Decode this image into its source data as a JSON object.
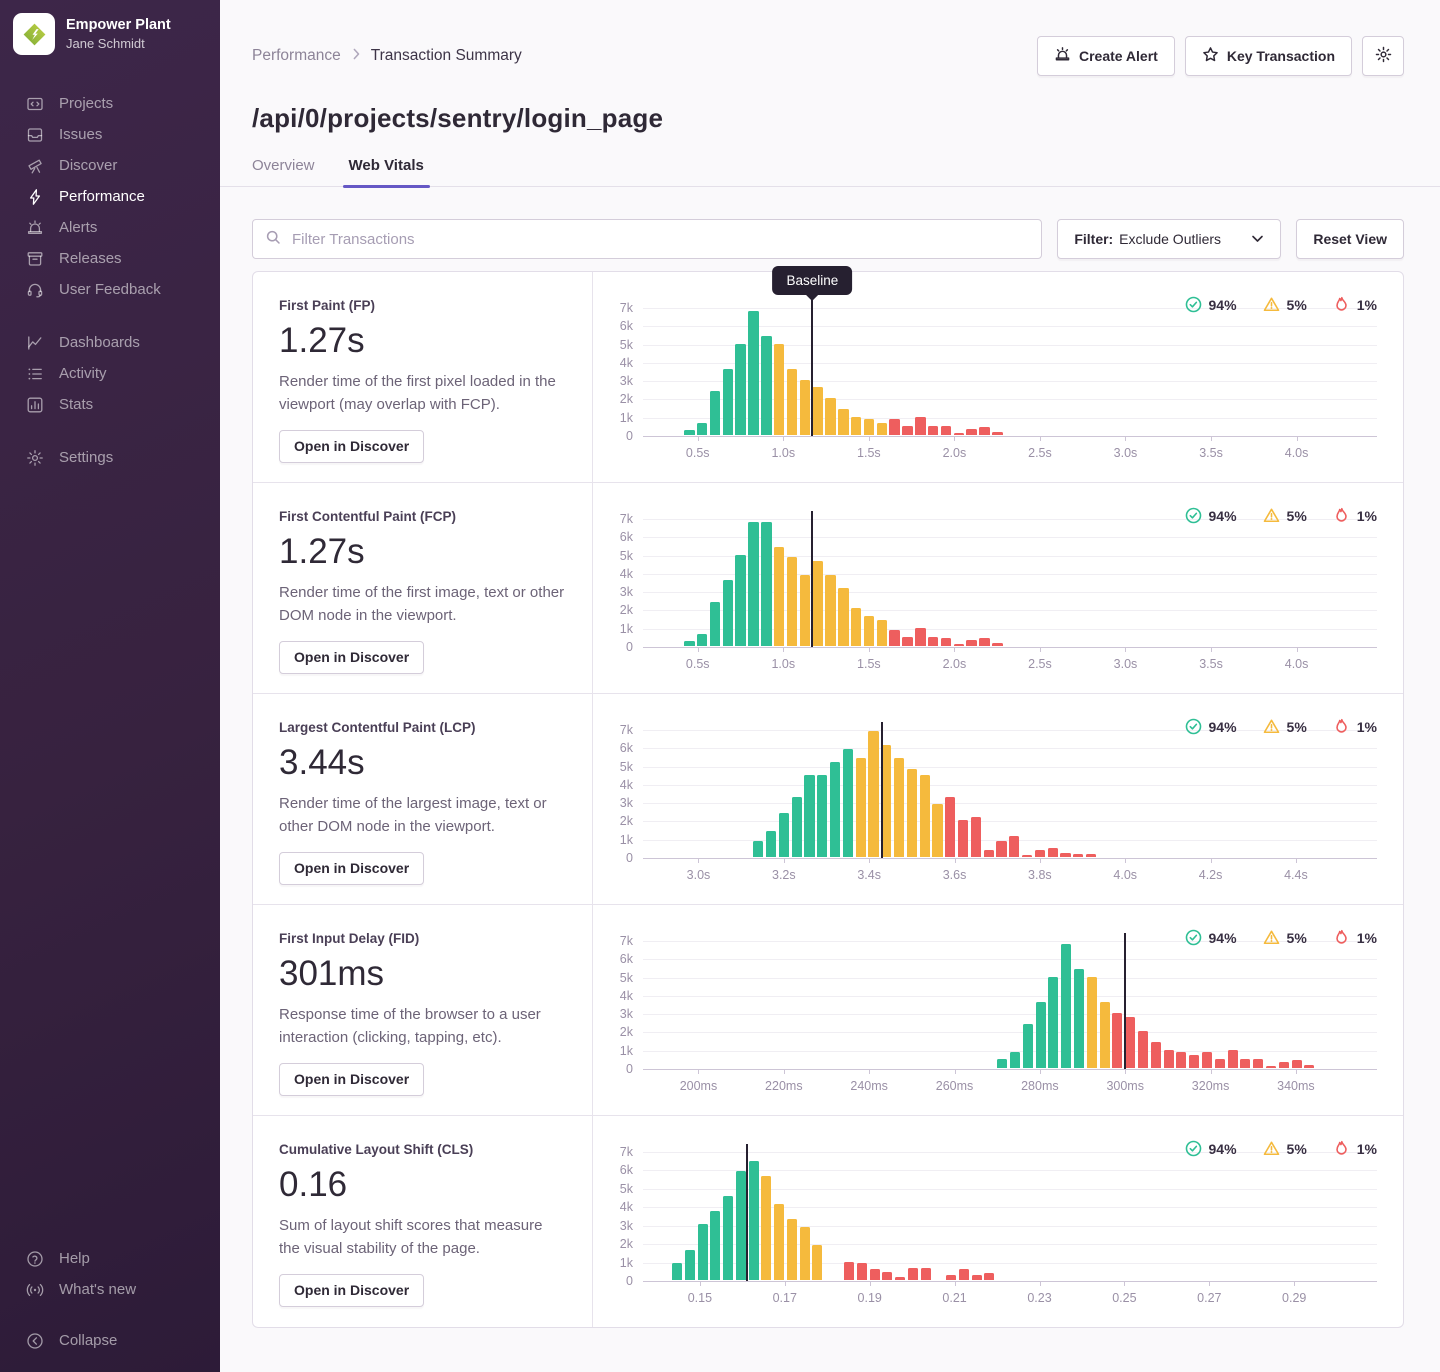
{
  "sidebar": {
    "org_name": "Empower Plant",
    "user_name": "Jane Schmidt",
    "nav_primary": [
      {
        "label": "Projects"
      },
      {
        "label": "Issues"
      },
      {
        "label": "Discover"
      },
      {
        "label": "Performance"
      },
      {
        "label": "Alerts"
      },
      {
        "label": "Releases"
      },
      {
        "label": "User Feedback"
      }
    ],
    "nav_secondary": [
      {
        "label": "Dashboards"
      },
      {
        "label": "Activity"
      },
      {
        "label": "Stats"
      }
    ],
    "nav_settings": [
      {
        "label": "Settings"
      }
    ],
    "nav_footer": [
      {
        "label": "Help"
      },
      {
        "label": "What's new"
      },
      {
        "label": "Collapse"
      }
    ]
  },
  "header": {
    "breadcrumb_1": "Performance",
    "breadcrumb_2": "Transaction Summary",
    "create_alert_label": "Create Alert",
    "key_transaction_label": "Key Transaction",
    "page_title": "/api/0/projects/sentry/login_page",
    "tab_overview": "Overview",
    "tab_web_vitals": "Web Vitals"
  },
  "toolbar": {
    "search_placeholder": "Filter Transactions",
    "filter_label": "Filter:",
    "filter_value": "Exclude Outliers",
    "reset_label": "Reset View"
  },
  "colors": {
    "good": "#2fbf95",
    "meh": "#f5ba3d",
    "poor": "#ee5e5e",
    "accent": "#6658c5",
    "baseline": "#262030"
  },
  "chart_data": [
    {
      "type": "bar",
      "key": "fp",
      "title": "First Paint (FP)",
      "value": "1.27s",
      "description": "Render time of the first pixel loaded in the viewport (may overlap with FCP).",
      "button_label": "Open in Discover",
      "legend": {
        "good": "94%",
        "meh": "5%",
        "poor": "1%"
      },
      "ylabel_ticks": [
        "7k",
        "6k",
        "5k",
        "4k",
        "3k",
        "2k",
        "1k",
        "0"
      ],
      "ymax": 7000,
      "xlim": [
        0.18,
        4.47
      ],
      "xticks": [
        [
          0.5,
          "0.5s"
        ],
        [
          1.0,
          "1.0s"
        ],
        [
          1.5,
          "1.5s"
        ],
        [
          2.0,
          "2.0s"
        ],
        [
          2.5,
          "2.5s"
        ],
        [
          3.0,
          "3.0s"
        ],
        [
          3.5,
          "3.5s"
        ],
        [
          4.0,
          "4.0s"
        ]
      ],
      "baseline": 1.17,
      "baseline_tooltip": "Baseline",
      "bar_width": 0.062,
      "series": [
        {
          "name": "good",
          "bars": [
            [
              0.42,
              300
            ],
            [
              0.495,
              650
            ],
            [
              0.57,
              2400
            ],
            [
              0.645,
              3600
            ],
            [
              0.72,
              5000
            ],
            [
              0.795,
              6800
            ],
            [
              0.87,
              5400
            ]
          ]
        },
        {
          "name": "meh",
          "bars": [
            [
              0.945,
              5000
            ],
            [
              1.02,
              3600
            ],
            [
              1.095,
              3000
            ],
            [
              1.17,
              2650
            ],
            [
              1.245,
              2000
            ],
            [
              1.32,
              1400
            ],
            [
              1.395,
              1000
            ],
            [
              1.47,
              900
            ],
            [
              1.545,
              650
            ]
          ]
        },
        {
          "name": "poor",
          "bars": [
            [
              1.62,
              900
            ],
            [
              1.695,
              500
            ],
            [
              1.77,
              1000
            ],
            [
              1.845,
              500
            ],
            [
              1.92,
              500
            ],
            [
              1.995,
              100
            ],
            [
              2.07,
              350
            ],
            [
              2.145,
              450
            ],
            [
              2.22,
              150
            ]
          ]
        }
      ]
    },
    {
      "type": "bar",
      "key": "fcp",
      "title": "First Contentful Paint (FCP)",
      "value": "1.27s",
      "description": "Render time of the first image, text or other DOM node in the viewport.",
      "button_label": "Open in Discover",
      "legend": {
        "good": "94%",
        "meh": "5%",
        "poor": "1%"
      },
      "ylabel_ticks": [
        "7k",
        "6k",
        "5k",
        "4k",
        "3k",
        "2k",
        "1k",
        "0"
      ],
      "ymax": 7000,
      "xlim": [
        0.18,
        4.47
      ],
      "xticks": [
        [
          0.5,
          "0.5s"
        ],
        [
          1.0,
          "1.0s"
        ],
        [
          1.5,
          "1.5s"
        ],
        [
          2.0,
          "2.0s"
        ],
        [
          2.5,
          "2.5s"
        ],
        [
          3.0,
          "3.0s"
        ],
        [
          3.5,
          "3.5s"
        ],
        [
          4.0,
          "4.0s"
        ]
      ],
      "baseline": 1.17,
      "baseline_tooltip": null,
      "bar_width": 0.062,
      "series": [
        {
          "name": "good",
          "bars": [
            [
              0.42,
              300
            ],
            [
              0.495,
              650
            ],
            [
              0.57,
              2400
            ],
            [
              0.645,
              3600
            ],
            [
              0.72,
              5000
            ],
            [
              0.795,
              6800
            ],
            [
              0.87,
              6800
            ]
          ]
        },
        {
          "name": "meh",
          "bars": [
            [
              0.945,
              5400
            ],
            [
              1.02,
              4850
            ],
            [
              1.095,
              3900
            ],
            [
              1.17,
              4650
            ],
            [
              1.245,
              3900
            ],
            [
              1.32,
              3150
            ],
            [
              1.395,
              2100
            ],
            [
              1.47,
              1650
            ],
            [
              1.545,
              1400
            ]
          ]
        },
        {
          "name": "poor",
          "bars": [
            [
              1.62,
              900
            ],
            [
              1.695,
              500
            ],
            [
              1.77,
              1000
            ],
            [
              1.845,
              500
            ],
            [
              1.92,
              450
            ],
            [
              1.995,
              100
            ],
            [
              2.07,
              350
            ],
            [
              2.145,
              450
            ],
            [
              2.22,
              150
            ]
          ]
        }
      ]
    },
    {
      "type": "bar",
      "key": "lcp",
      "title": "Largest Contentful Paint (LCP)",
      "value": "3.44s",
      "description": "Render time of the largest image, text or other DOM node in the viewport.",
      "button_label": "Open in Discover",
      "legend": {
        "good": "94%",
        "meh": "5%",
        "poor": "1%"
      },
      "ylabel_ticks": [
        "7k",
        "6k",
        "5k",
        "4k",
        "3k",
        "2k",
        "1k",
        "0"
      ],
      "ymax": 7000,
      "xlim": [
        2.87,
        4.59
      ],
      "xticks": [
        [
          3.0,
          "3.0s"
        ],
        [
          3.2,
          "3.2s"
        ],
        [
          3.4,
          "3.4s"
        ],
        [
          3.6,
          "3.6s"
        ],
        [
          3.8,
          "3.8s"
        ],
        [
          4.0,
          "4.0s"
        ],
        [
          4.2,
          "4.2s"
        ],
        [
          4.4,
          "4.4s"
        ]
      ],
      "baseline": 3.43,
      "baseline_tooltip": null,
      "bar_width": 0.024,
      "series": [
        {
          "name": "good",
          "bars": [
            [
              3.128,
              900
            ],
            [
              3.158,
              1400
            ],
            [
              3.188,
              2400
            ],
            [
              3.218,
              3300
            ],
            [
              3.248,
              4500
            ],
            [
              3.278,
              4500
            ],
            [
              3.308,
              5200
            ],
            [
              3.338,
              5900
            ]
          ]
        },
        {
          "name": "meh",
          "bars": [
            [
              3.368,
              5400
            ],
            [
              3.398,
              6900
            ],
            [
              3.428,
              6100
            ],
            [
              3.458,
              5400
            ],
            [
              3.488,
              4800
            ],
            [
              3.518,
              4500
            ],
            [
              3.548,
              2900
            ]
          ]
        },
        {
          "name": "poor",
          "bars": [
            [
              3.578,
              3300
            ],
            [
              3.608,
              2000
            ],
            [
              3.638,
              2200
            ],
            [
              3.668,
              400
            ],
            [
              3.698,
              850
            ],
            [
              3.728,
              1150
            ],
            [
              3.758,
              100
            ],
            [
              3.788,
              400
            ],
            [
              3.818,
              500
            ],
            [
              3.848,
              200
            ],
            [
              3.878,
              150
            ],
            [
              3.908,
              150
            ]
          ]
        }
      ]
    },
    {
      "type": "bar",
      "key": "fid",
      "title": "First Input Delay (FID)",
      "value": "301ms",
      "description": "Response time of the browser to a user interaction (clicking, tapping, etc).",
      "button_label": "Open in Discover",
      "legend": {
        "good": "94%",
        "meh": "5%",
        "poor": "1%"
      },
      "ylabel_ticks": [
        "7k",
        "6k",
        "5k",
        "4k",
        "3k",
        "2k",
        "1k",
        "0"
      ],
      "ymax": 7000,
      "xlim": [
        187,
        359
      ],
      "xticks": [
        [
          200,
          "200ms"
        ],
        [
          220,
          "220ms"
        ],
        [
          240,
          "240ms"
        ],
        [
          260,
          "260ms"
        ],
        [
          280,
          "280ms"
        ],
        [
          300,
          "300ms"
        ],
        [
          320,
          "320ms"
        ],
        [
          340,
          "340ms"
        ]
      ],
      "baseline": 300,
      "baseline_tooltip": null,
      "bar_width": 2.35,
      "series": [
        {
          "name": "good",
          "bars": [
            [
              270,
              500
            ],
            [
              273,
              900
            ],
            [
              276,
              2400
            ],
            [
              279,
              3600
            ],
            [
              282,
              5000
            ],
            [
              285,
              6800
            ],
            [
              288,
              5400
            ]
          ]
        },
        {
          "name": "meh",
          "bars": [
            [
              291,
              5000
            ],
            [
              294,
              3600
            ]
          ]
        },
        {
          "name": "poor",
          "bars": [
            [
              297,
              3000
            ],
            [
              300,
              2800
            ],
            [
              303,
              2000
            ],
            [
              306,
              1400
            ],
            [
              309,
              1000
            ],
            [
              312,
              900
            ],
            [
              315,
              700
            ],
            [
              318,
              900
            ],
            [
              321,
              500
            ],
            [
              324,
              1000
            ],
            [
              327,
              500
            ],
            [
              330,
              500
            ],
            [
              333,
              100
            ],
            [
              336,
              350
            ],
            [
              339,
              450
            ],
            [
              342,
              150
            ]
          ]
        }
      ]
    },
    {
      "type": "bar",
      "key": "cls",
      "title": "Cumulative Layout Shift (CLS)",
      "value": "0.16",
      "description": "Sum of layout shift scores that measure the visual stability of the page.",
      "button_label": "Open in Discover",
      "legend": {
        "good": "94%",
        "meh": "5%",
        "poor": "1%"
      },
      "ylabel_ticks": [
        "7k",
        "6k",
        "5k",
        "4k",
        "3k",
        "2k",
        "1k",
        "0"
      ],
      "ymax": 7000,
      "xlim": [
        0.1366,
        0.3095
      ],
      "xticks": [
        [
          0.15,
          "0.15"
        ],
        [
          0.17,
          "0.17"
        ],
        [
          0.19,
          "0.19"
        ],
        [
          0.21,
          "0.21"
        ],
        [
          0.23,
          "0.23"
        ],
        [
          0.25,
          "0.25"
        ],
        [
          0.27,
          "0.27"
        ],
        [
          0.29,
          "0.29"
        ]
      ],
      "baseline": 0.161,
      "baseline_tooltip": null,
      "bar_width": 0.00235,
      "series": [
        {
          "name": "good",
          "bars": [
            [
              0.1435,
              950
            ],
            [
              0.1465,
              1650
            ],
            [
              0.1495,
              3050
            ],
            [
              0.1525,
              3750
            ],
            [
              0.1555,
              4550
            ],
            [
              0.1585,
              5900
            ],
            [
              0.1615,
              6450
            ]
          ]
        },
        {
          "name": "meh",
          "bars": [
            [
              0.1645,
              5650
            ],
            [
              0.1675,
              4100
            ],
            [
              0.1705,
              3300
            ],
            [
              0.1735,
              2900
            ],
            [
              0.1765,
              1900
            ]
          ]
        },
        {
          "name": "poor",
          "bars": [
            [
              0.184,
              1000
            ],
            [
              0.187,
              950
            ],
            [
              0.19,
              600
            ],
            [
              0.193,
              450
            ],
            [
              0.196,
              150
            ],
            [
              0.199,
              650
            ],
            [
              0.202,
              650
            ],
            [
              0.208,
              250
            ],
            [
              0.211,
              600
            ],
            [
              0.214,
              250
            ],
            [
              0.217,
              400
            ]
          ]
        }
      ]
    }
  ]
}
